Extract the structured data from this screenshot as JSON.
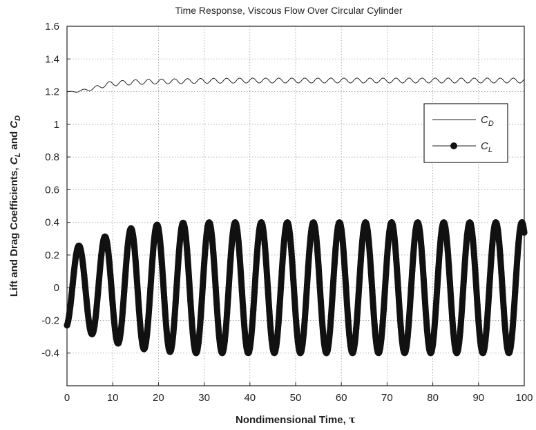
{
  "chart_data": {
    "type": "line",
    "title": "Time Response, Viscous Flow Over Circular Cylinder",
    "xlabel_main": "Nondimensional Time, ",
    "xlabel_symbol": "τ",
    "ylabel_main": "Lift and Drag Coefficients, ",
    "ylabel_cl": "C",
    "ylabel_cl_sub": "L",
    "ylabel_and": " and ",
    "ylabel_cd": "C",
    "ylabel_cd_sub": "D",
    "xlim": [
      0,
      100
    ],
    "ylim": [
      -0.6,
      1.6
    ],
    "xticks": [
      0,
      10,
      20,
      30,
      40,
      50,
      60,
      70,
      80,
      90,
      100
    ],
    "xtick_labels": [
      "0",
      "10",
      "20",
      "30",
      "40",
      "50",
      "60",
      "70",
      "80",
      "90",
      "100"
    ],
    "yticks": [
      -0.4,
      -0.2,
      0,
      0.2,
      0.4,
      0.6,
      0.8,
      1.0,
      1.2,
      1.4,
      1.6
    ],
    "ytick_labels": [
      "-0.4",
      "-0.2",
      "0",
      "0.2",
      "0.4",
      "0.6",
      "0.8",
      "1",
      "1.2",
      "1.4",
      "1.6"
    ],
    "grid": true,
    "legend_position": "right",
    "series": [
      {
        "name": "C",
        "name_sub": "D",
        "style": "thin-line",
        "color": "#222222",
        "x": [
          0,
          2,
          4,
          6,
          8,
          10,
          15,
          20,
          30,
          40,
          50,
          60,
          70,
          80,
          90,
          100
        ],
        "y": [
          1.2,
          1.2,
          1.21,
          1.22,
          1.24,
          1.25,
          1.258,
          1.262,
          1.266,
          1.268,
          1.268,
          1.268,
          1.268,
          1.268,
          1.268,
          1.268
        ],
        "oscillation_amplitude": 0.015,
        "oscillation_period": 2.85
      },
      {
        "name": "C",
        "name_sub": "L",
        "style": "line-with-dots",
        "color": "#111111",
        "x": [
          0,
          3,
          6,
          9,
          12,
          15,
          18,
          21,
          24,
          27,
          30,
          100
        ],
        "amplitude": [
          0.24,
          0.26,
          0.29,
          0.32,
          0.35,
          0.37,
          0.38,
          0.39,
          0.395,
          0.4,
          0.4,
          0.4
        ],
        "period": 5.7,
        "peaks_x": [
          2.5,
          8.9,
          14.6,
          20.3,
          26.0,
          31.7,
          37.4,
          43.1,
          48.8,
          54.5,
          60.2,
          65.9,
          71.6,
          77.3,
          83.0,
          88.7,
          94.4
        ],
        "start_value": -0.23,
        "end_value": 0.32
      }
    ]
  }
}
